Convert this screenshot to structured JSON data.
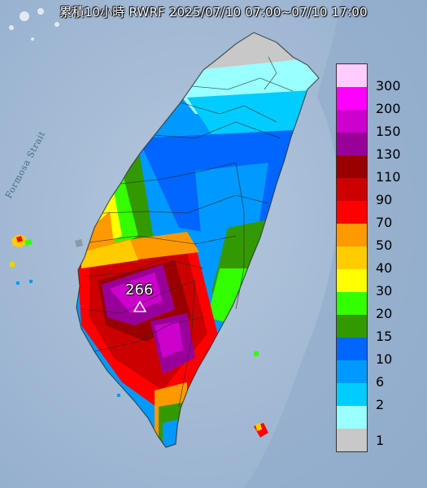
{
  "title": "累積10小時 RWRF 2025/07/10 07:00~07/10 17:00",
  "sea_label": "Formosa Strait",
  "max_value": "266",
  "legend": {
    "levels": [
      {
        "label": "300",
        "color": "#ffccff"
      },
      {
        "label": "200",
        "color": "#ff00ff"
      },
      {
        "label": "150",
        "color": "#cc00cc"
      },
      {
        "label": "130",
        "color": "#990099"
      },
      {
        "label": "110",
        "color": "#990000"
      },
      {
        "label": "90",
        "color": "#cc0000"
      },
      {
        "label": "70",
        "color": "#ff0000"
      },
      {
        "label": "50",
        "color": "#ff9900"
      },
      {
        "label": "40",
        "color": "#ffcc00"
      },
      {
        "label": "30",
        "color": "#ffff00"
      },
      {
        "label": "20",
        "color": "#33ff00"
      },
      {
        "label": "15",
        "color": "#339900"
      },
      {
        "label": "10",
        "color": "#0066ff"
      },
      {
        "label": "6",
        "color": "#0099ff"
      },
      {
        "label": "2",
        "color": "#00ccff"
      },
      {
        "label": "1",
        "color": "#99ffff"
      },
      {
        "label": "",
        "color": "#c8c8c8"
      }
    ]
  },
  "map": {
    "sea_color": "#a8bdd6",
    "deep_sea_color": "#7f9dc4"
  }
}
